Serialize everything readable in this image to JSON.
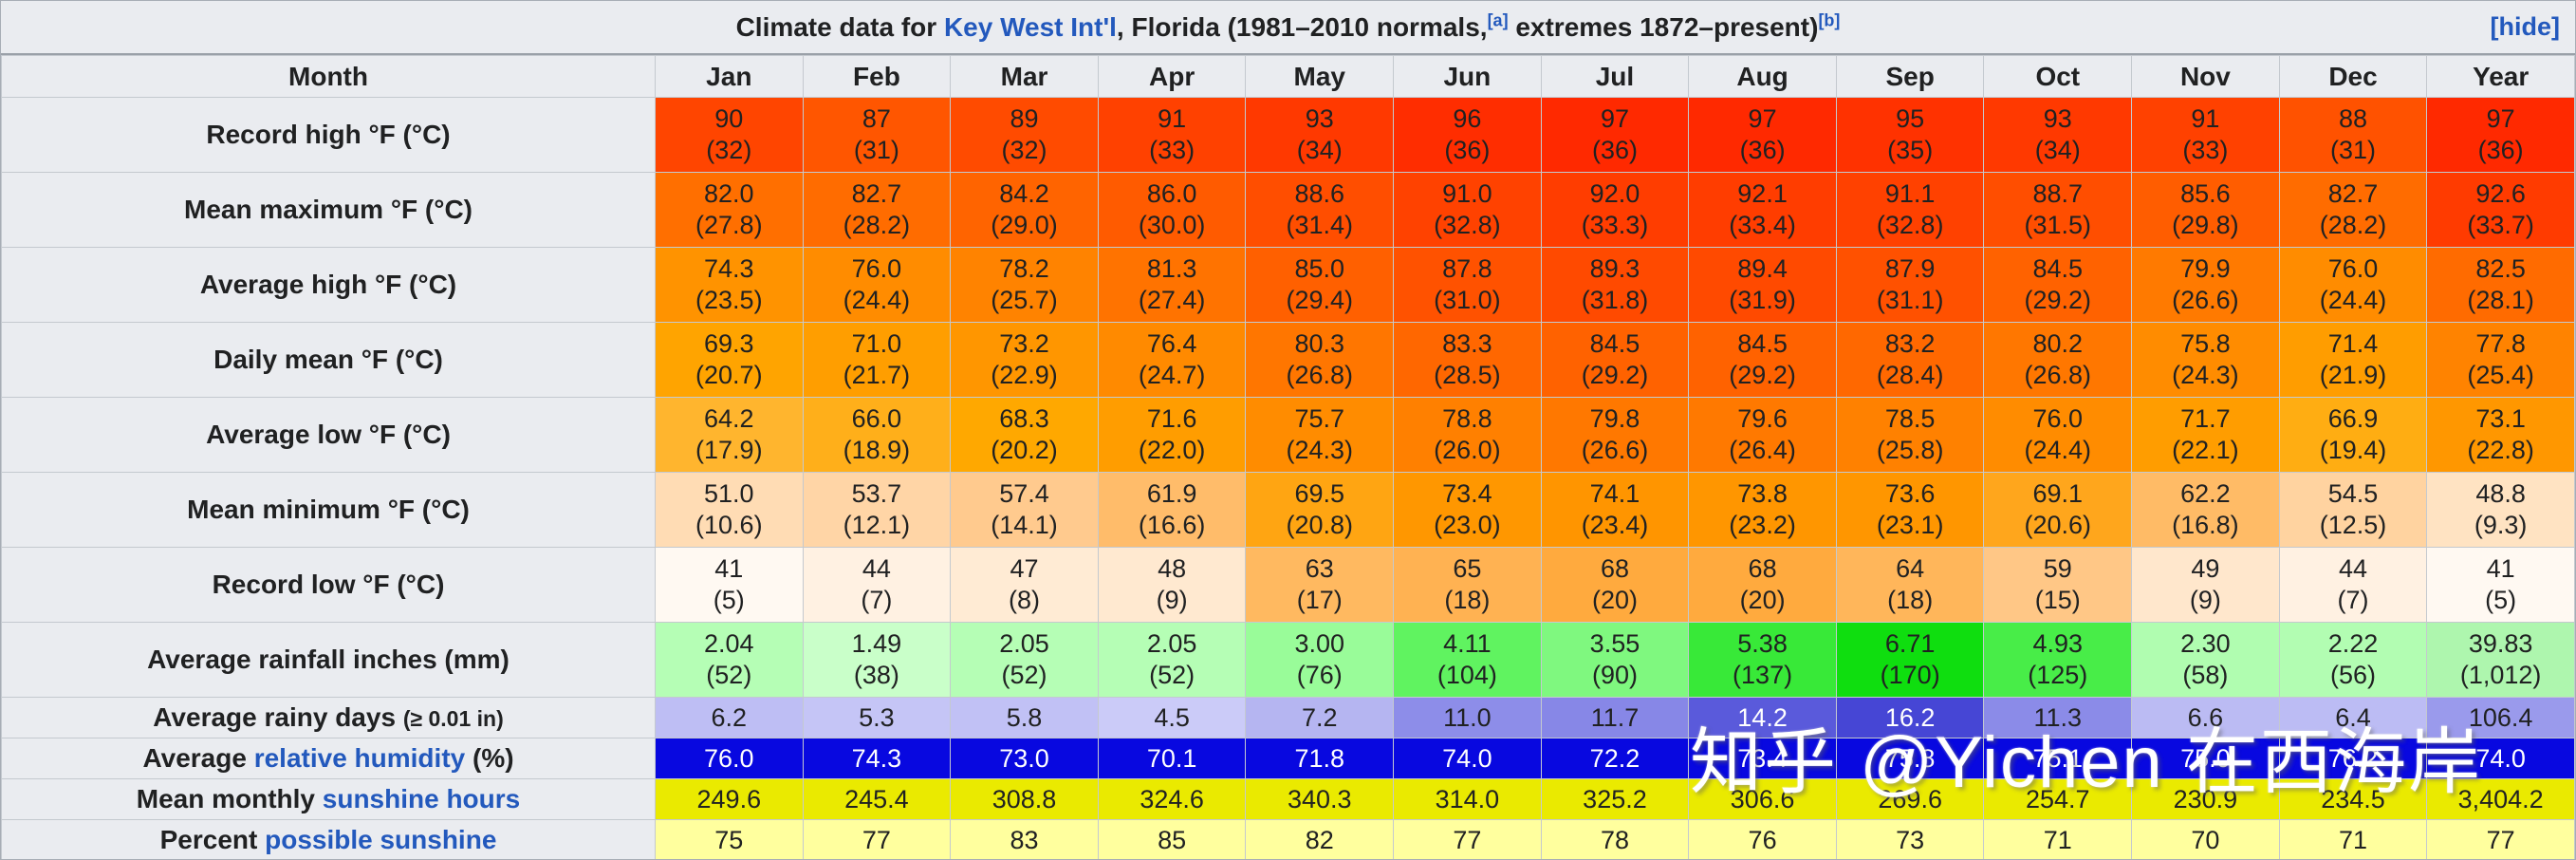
{
  "title": {
    "prefix": "Climate data for ",
    "station_link": "Key West Int'l",
    "middle": ", Florida (1981–2010 normals,",
    "ref_a": "[a]",
    "middle2": " extremes 1872–present)",
    "ref_b": "[b]",
    "hide_label": "[hide]"
  },
  "watermark": "知乎 @Yichen 在西海岸",
  "colors": {
    "link_blue": "#2359bd",
    "header_gray": "#eaecf0",
    "humidity_blue": "#0808e0",
    "sunshine_yellow": "#eaea00",
    "percent_sunshine_pale_yellow": "#ffff9e"
  },
  "chart_data": {
    "type": "table",
    "title": "Climate data for Key West Int'l, Florida (1981–2010 normals, extremes 1872–present)",
    "month_col_label": "Month",
    "columns": [
      "Jan",
      "Feb",
      "Mar",
      "Apr",
      "May",
      "Jun",
      "Jul",
      "Aug",
      "Sep",
      "Oct",
      "Nov",
      "Dec",
      "Year"
    ],
    "rows": [
      {
        "label_parts": [
          {
            "text": "Record high °F (°C)",
            "link": false
          }
        ],
        "small_suffix": "",
        "dual": true,
        "cells": [
          {
            "v": "90",
            "s": "(32)",
            "bg": "#FF4500"
          },
          {
            "v": "87",
            "s": "(31)",
            "bg": "#FF5600"
          },
          {
            "v": "89",
            "s": "(32)",
            "bg": "#FF4B00"
          },
          {
            "v": "91",
            "s": "(33)",
            "bg": "#FF4100"
          },
          {
            "v": "93",
            "s": "(34)",
            "bg": "#FF3900"
          },
          {
            "v": "96",
            "s": "(36)",
            "bg": "#FF2D00"
          },
          {
            "v": "97",
            "s": "(36)",
            "bg": "#FF2900"
          },
          {
            "v": "97",
            "s": "(36)",
            "bg": "#FF2900"
          },
          {
            "v": "95",
            "s": "(35)",
            "bg": "#FF3200"
          },
          {
            "v": "93",
            "s": "(34)",
            "bg": "#FF3900"
          },
          {
            "v": "91",
            "s": "(33)",
            "bg": "#FF4100"
          },
          {
            "v": "88",
            "s": "(31)",
            "bg": "#FF5200"
          },
          {
            "v": "97",
            "s": "(36)",
            "bg": "#FF2900"
          }
        ]
      },
      {
        "label_parts": [
          {
            "text": "Mean maximum °F (°C)",
            "link": false
          }
        ],
        "small_suffix": "",
        "dual": true,
        "cells": [
          {
            "v": "82.0",
            "s": "(27.8)",
            "bg": "#FF6F00"
          },
          {
            "v": "82.7",
            "s": "(28.2)",
            "bg": "#FF6C00"
          },
          {
            "v": "84.2",
            "s": "(29.0)",
            "bg": "#FF6400"
          },
          {
            "v": "86.0",
            "s": "(30.0)",
            "bg": "#FF5B00"
          },
          {
            "v": "88.6",
            "s": "(31.4)",
            "bg": "#FF4E00"
          },
          {
            "v": "91.0",
            "s": "(32.8)",
            "bg": "#FF4200"
          },
          {
            "v": "92.0",
            "s": "(33.3)",
            "bg": "#FF3D00"
          },
          {
            "v": "92.1",
            "s": "(33.4)",
            "bg": "#FF3D00"
          },
          {
            "v": "91.1",
            "s": "(32.8)",
            "bg": "#FF4100"
          },
          {
            "v": "88.7",
            "s": "(31.5)",
            "bg": "#FF4E00"
          },
          {
            "v": "85.6",
            "s": "(29.8)",
            "bg": "#FF5D00"
          },
          {
            "v": "82.7",
            "s": "(28.2)",
            "bg": "#FF6C00"
          },
          {
            "v": "92.6",
            "s": "(33.7)",
            "bg": "#FF3B00"
          }
        ]
      },
      {
        "label_parts": [
          {
            "text": "Average high °F (°C)",
            "link": false
          }
        ],
        "small_suffix": "",
        "dual": true,
        "cells": [
          {
            "v": "74.3",
            "s": "(23.5)",
            "bg": "#FF9300"
          },
          {
            "v": "76.0",
            "s": "(24.4)",
            "bg": "#FF8C00"
          },
          {
            "v": "78.2",
            "s": "(25.7)",
            "bg": "#FF8300"
          },
          {
            "v": "81.3",
            "s": "(27.4)",
            "bg": "#FF7300"
          },
          {
            "v": "85.0",
            "s": "(29.4)",
            "bg": "#FF6000"
          },
          {
            "v": "87.8",
            "s": "(31.0)",
            "bg": "#FF5200"
          },
          {
            "v": "89.3",
            "s": "(31.8)",
            "bg": "#FF4A00"
          },
          {
            "v": "89.4",
            "s": "(31.9)",
            "bg": "#FF4A00"
          },
          {
            "v": "87.9",
            "s": "(31.1)",
            "bg": "#FF5100"
          },
          {
            "v": "84.5",
            "s": "(29.2)",
            "bg": "#FF6200"
          },
          {
            "v": "79.9",
            "s": "(26.6)",
            "bg": "#FF7A00"
          },
          {
            "v": "76.0",
            "s": "(24.4)",
            "bg": "#FF8C00"
          },
          {
            "v": "82.5",
            "s": "(28.1)",
            "bg": "#FF6B00"
          }
        ]
      },
      {
        "label_parts": [
          {
            "text": "Daily mean °F (°C)",
            "link": false
          }
        ],
        "small_suffix": "",
        "dual": true,
        "cells": [
          {
            "v": "69.3",
            "s": "(20.7)",
            "bg": "#FFA400"
          },
          {
            "v": "71.0",
            "s": "(21.7)",
            "bg": "#FF9E00"
          },
          {
            "v": "73.2",
            "s": "(22.9)",
            "bg": "#FF9600"
          },
          {
            "v": "76.4",
            "s": "(24.7)",
            "bg": "#FF8A00"
          },
          {
            "v": "80.3",
            "s": "(26.8)",
            "bg": "#FF7600"
          },
          {
            "v": "83.3",
            "s": "(28.5)",
            "bg": "#FF6700"
          },
          {
            "v": "84.5",
            "s": "(29.2)",
            "bg": "#FF6200"
          },
          {
            "v": "84.5",
            "s": "(29.2)",
            "bg": "#FF6200"
          },
          {
            "v": "83.2",
            "s": "(28.4)",
            "bg": "#FF6800"
          },
          {
            "v": "80.2",
            "s": "(26.8)",
            "bg": "#FF7700"
          },
          {
            "v": "75.8",
            "s": "(24.3)",
            "bg": "#FF8C00"
          },
          {
            "v": "71.4",
            "s": "(21.9)",
            "bg": "#FF9D00"
          },
          {
            "v": "77.8",
            "s": "(25.4)",
            "bg": "#FF8300"
          }
        ]
      },
      {
        "label_parts": [
          {
            "text": "Average low °F (°C)",
            "link": false
          }
        ],
        "small_suffix": "",
        "dual": true,
        "cells": [
          {
            "v": "64.2",
            "s": "(17.9)",
            "bg": "#FFB52E"
          },
          {
            "v": "66.0",
            "s": "(18.9)",
            "bg": "#FFAF1A"
          },
          {
            "v": "68.3",
            "s": "(20.2)",
            "bg": "#FFA800"
          },
          {
            "v": "71.6",
            "s": "(22.0)",
            "bg": "#FF9D00"
          },
          {
            "v": "75.7",
            "s": "(24.3)",
            "bg": "#FF8C00"
          },
          {
            "v": "78.8",
            "s": "(26.0)",
            "bg": "#FF8000"
          },
          {
            "v": "79.8",
            "s": "(26.6)",
            "bg": "#FF7800"
          },
          {
            "v": "79.6",
            "s": "(26.4)",
            "bg": "#FF7900"
          },
          {
            "v": "78.5",
            "s": "(25.8)",
            "bg": "#FF8100"
          },
          {
            "v": "76.0",
            "s": "(24.4)",
            "bg": "#FF8C00"
          },
          {
            "v": "71.7",
            "s": "(22.1)",
            "bg": "#FF9D00"
          },
          {
            "v": "66.9",
            "s": "(19.4)",
            "bg": "#FFAD12"
          },
          {
            "v": "73.1",
            "s": "(22.8)",
            "bg": "#FF9700"
          }
        ]
      },
      {
        "label_parts": [
          {
            "text": "Mean minimum °F (°C)",
            "link": false
          }
        ],
        "small_suffix": "",
        "dual": true,
        "cells": [
          {
            "v": "51.0",
            "s": "(10.6)",
            "bg": "#FFDCB4"
          },
          {
            "v": "53.7",
            "s": "(12.1)",
            "bg": "#FFD5A6"
          },
          {
            "v": "57.4",
            "s": "(14.1)",
            "bg": "#FFCA8E"
          },
          {
            "v": "61.9",
            "s": "(16.6)",
            "bg": "#FFBC6A"
          },
          {
            "v": "69.5",
            "s": "(20.8)",
            "bg": "#FFA512"
          },
          {
            "v": "73.4",
            "s": "(23.0)",
            "bg": "#FF9700"
          },
          {
            "v": "74.1",
            "s": "(23.4)",
            "bg": "#FF9500"
          },
          {
            "v": "73.8",
            "s": "(23.2)",
            "bg": "#FF9600"
          },
          {
            "v": "73.6",
            "s": "(23.1)",
            "bg": "#FF9600"
          },
          {
            "v": "69.1",
            "s": "(20.6)",
            "bg": "#FFA61C"
          },
          {
            "v": "62.2",
            "s": "(16.8)",
            "bg": "#FFBB66"
          },
          {
            "v": "54.5",
            "s": "(12.5)",
            "bg": "#FFD3A0"
          },
          {
            "v": "48.8",
            "s": "(9.3)",
            "bg": "#FFE3C2"
          }
        ]
      },
      {
        "label_parts": [
          {
            "text": "Record low °F (°C)",
            "link": false
          }
        ],
        "small_suffix": "",
        "dual": true,
        "cells": [
          {
            "v": "41",
            "s": "(5)",
            "bg": "#FFF9F2"
          },
          {
            "v": "44",
            "s": "(7)",
            "bg": "#FFF1E2"
          },
          {
            "v": "47",
            "s": "(8)",
            "bg": "#FFEBD4"
          },
          {
            "v": "48",
            "s": "(9)",
            "bg": "#FFE9D0"
          },
          {
            "v": "63",
            "s": "(17)",
            "bg": "#FFB960"
          },
          {
            "v": "65",
            "s": "(18)",
            "bg": "#FFB252"
          },
          {
            "v": "68",
            "s": "(20)",
            "bg": "#FFAA3E"
          },
          {
            "v": "68",
            "s": "(20)",
            "bg": "#FFAA3E"
          },
          {
            "v": "64",
            "s": "(18)",
            "bg": "#FFB65A"
          },
          {
            "v": "59",
            "s": "(15)",
            "bg": "#FFC786"
          },
          {
            "v": "49",
            "s": "(9)",
            "bg": "#FFE7CC"
          },
          {
            "v": "44",
            "s": "(7)",
            "bg": "#FFF1E2"
          },
          {
            "v": "41",
            "s": "(5)",
            "bg": "#FFF9F2"
          }
        ]
      },
      {
        "label_parts": [
          {
            "text": "Average rainfall inches (mm)",
            "link": false
          }
        ],
        "small_suffix": "",
        "dual": true,
        "cells": [
          {
            "v": "2.04",
            "s": "(52)",
            "bg": "#B5FEB5"
          },
          {
            "v": "1.49",
            "s": "(38)",
            "bg": "#C9FFC9"
          },
          {
            "v": "2.05",
            "s": "(52)",
            "bg": "#B5FEB5"
          },
          {
            "v": "2.05",
            "s": "(52)",
            "bg": "#B5FEB5"
          },
          {
            "v": "3.00",
            "s": "(76)",
            "bg": "#99FC99"
          },
          {
            "v": "4.11",
            "s": "(104)",
            "bg": "#60F360"
          },
          {
            "v": "3.55",
            "s": "(90)",
            "bg": "#7FF87F"
          },
          {
            "v": "5.38",
            "s": "(137)",
            "bg": "#38E938"
          },
          {
            "v": "6.71",
            "s": "(170)",
            "bg": "#0FDE0F"
          },
          {
            "v": "4.93",
            "s": "(125)",
            "bg": "#48ED48"
          },
          {
            "v": "2.30",
            "s": "(58)",
            "bg": "#B0FDB0"
          },
          {
            "v": "2.22",
            "s": "(56)",
            "bg": "#B2FDB2"
          },
          {
            "v": "39.83",
            "s": "(1,012)",
            "bg": "#AEF6AE"
          }
        ]
      },
      {
        "label_parts": [
          {
            "text": "Average rainy days ",
            "link": false
          }
        ],
        "small_suffix": "(≥ 0.01 in)",
        "dual": false,
        "cells": [
          {
            "v": "6.2",
            "bg": "#BEBEF4"
          },
          {
            "v": "5.3",
            "bg": "#C5C5F6"
          },
          {
            "v": "5.8",
            "bg": "#C1C1F5"
          },
          {
            "v": "4.5",
            "bg": "#CBCBF8"
          },
          {
            "v": "7.2",
            "bg": "#B5B5F1"
          },
          {
            "v": "11.0",
            "bg": "#8D8DE9"
          },
          {
            "v": "11.7",
            "bg": "#8787E7"
          },
          {
            "v": "14.2",
            "bg": "#5A5ADB",
            "fg": "#ffffff"
          },
          {
            "v": "16.2",
            "bg": "#4646D5",
            "fg": "#ffffff"
          },
          {
            "v": "11.3",
            "bg": "#8B8BE8"
          },
          {
            "v": "6.6",
            "bg": "#BBBBF3"
          },
          {
            "v": "6.4",
            "bg": "#BCBCF4"
          },
          {
            "v": "106.4",
            "bg": "#9A9AEC"
          }
        ]
      },
      {
        "label_parts": [
          {
            "text": "Average ",
            "link": false
          },
          {
            "text": "relative humidity",
            "link": true
          },
          {
            "text": " (%)",
            "link": false
          }
        ],
        "small_suffix": "",
        "dual": false,
        "fg": "#ffffff",
        "cells": [
          {
            "v": "76.0",
            "bg": "#0808E0"
          },
          {
            "v": "74.3",
            "bg": "#0808E0"
          },
          {
            "v": "73.0",
            "bg": "#0808E0"
          },
          {
            "v": "70.1",
            "bg": "#0808E0"
          },
          {
            "v": "71.8",
            "bg": "#0808E0"
          },
          {
            "v": "74.0",
            "bg": "#0808E0"
          },
          {
            "v": "72.2",
            "bg": "#0808E0"
          },
          {
            "v": "73.4",
            "bg": "#0808E0"
          },
          {
            "v": "75.8",
            "bg": "#0808E0"
          },
          {
            "v": "75.1",
            "bg": "#0808E0"
          },
          {
            "v": "75.0",
            "bg": "#0808E0"
          },
          {
            "v": "76.2",
            "bg": "#0808E0"
          },
          {
            "v": "74.0",
            "bg": "#0808E0"
          }
        ]
      },
      {
        "label_parts": [
          {
            "text": "Mean monthly ",
            "link": false
          },
          {
            "text": "sunshine hours",
            "link": true
          }
        ],
        "small_suffix": "",
        "dual": false,
        "cells": [
          {
            "v": "249.6",
            "bg": "#EAEA00"
          },
          {
            "v": "245.4",
            "bg": "#EAEA00"
          },
          {
            "v": "308.8",
            "bg": "#EAEA00"
          },
          {
            "v": "324.6",
            "bg": "#EAEA00"
          },
          {
            "v": "340.3",
            "bg": "#EAEA00"
          },
          {
            "v": "314.0",
            "bg": "#EAEA00"
          },
          {
            "v": "325.2",
            "bg": "#EAEA00"
          },
          {
            "v": "306.6",
            "bg": "#EAEA00"
          },
          {
            "v": "269.6",
            "bg": "#EAEA00"
          },
          {
            "v": "254.7",
            "bg": "#EAEA00"
          },
          {
            "v": "230.9",
            "bg": "#EAEA00"
          },
          {
            "v": "234.5",
            "bg": "#EAEA00"
          },
          {
            "v": "3,404.2",
            "bg": "#EAEA00"
          }
        ]
      },
      {
        "label_parts": [
          {
            "text": "Percent ",
            "link": false
          },
          {
            "text": "possible sunshine",
            "link": true
          }
        ],
        "small_suffix": "",
        "dual": false,
        "cells": [
          {
            "v": "75",
            "bg": "#FFFF9E"
          },
          {
            "v": "77",
            "bg": "#FFFF9E"
          },
          {
            "v": "83",
            "bg": "#FFFF9E"
          },
          {
            "v": "85",
            "bg": "#FFFF9E"
          },
          {
            "v": "82",
            "bg": "#FFFF9E"
          },
          {
            "v": "77",
            "bg": "#FFFF9E"
          },
          {
            "v": "78",
            "bg": "#FFFF9E"
          },
          {
            "v": "76",
            "bg": "#FFFF9E"
          },
          {
            "v": "73",
            "bg": "#FFFF9E"
          },
          {
            "v": "71",
            "bg": "#FFFF9E"
          },
          {
            "v": "70",
            "bg": "#FFFF9E"
          },
          {
            "v": "71",
            "bg": "#FFFF9E"
          },
          {
            "v": "77",
            "bg": "#FFFF9E"
          }
        ]
      }
    ]
  }
}
